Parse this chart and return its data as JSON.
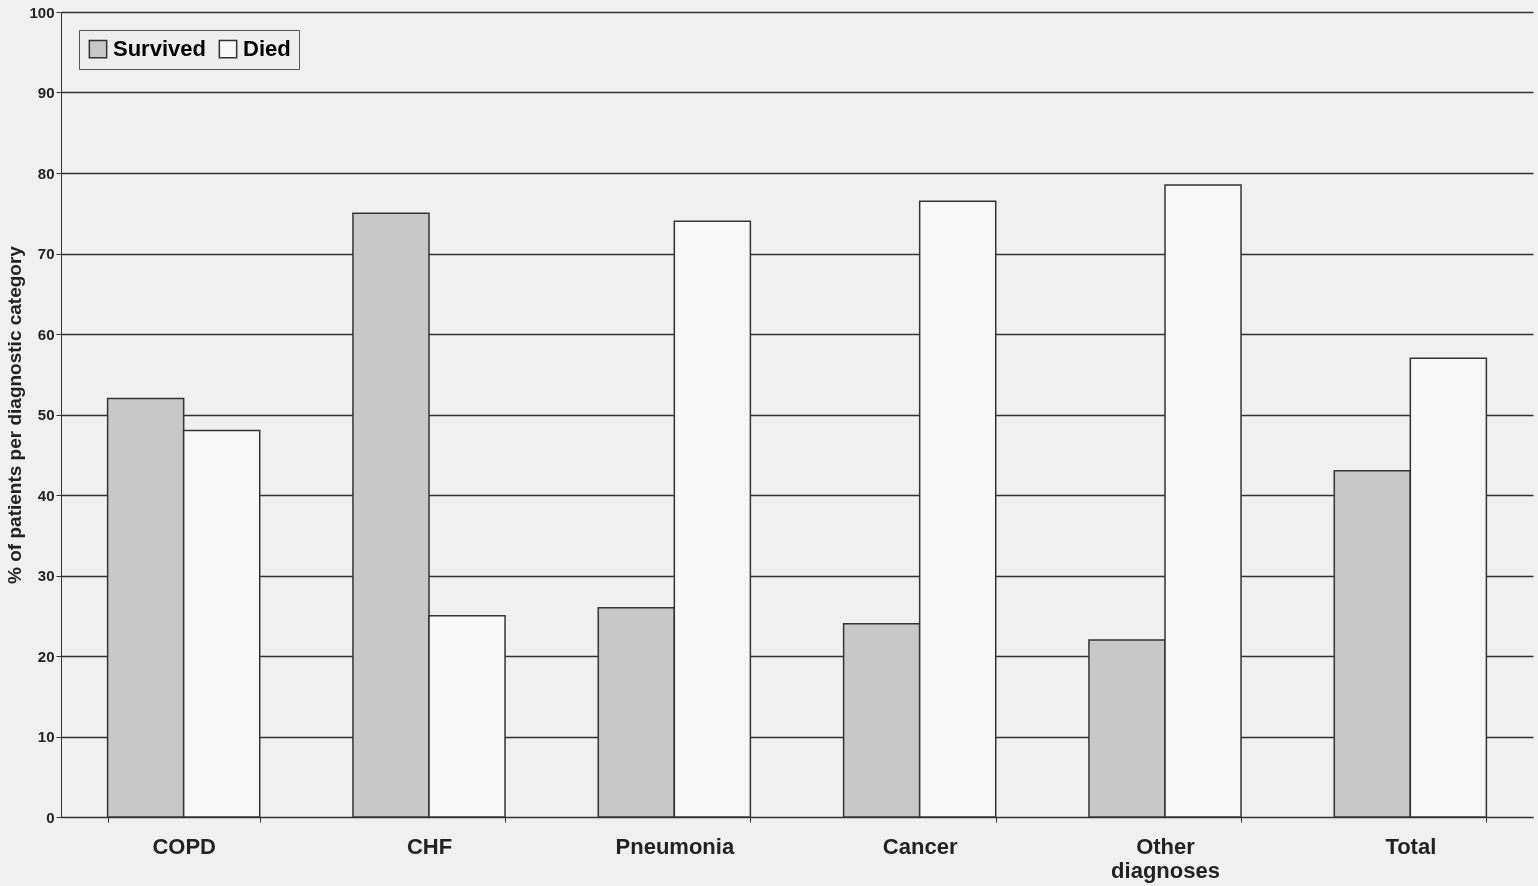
{
  "chart_data": {
    "type": "bar",
    "ylabel": "% of patients per diagnostic category",
    "categories": [
      "COPD",
      "CHF",
      "Pneumonia",
      "Cancer",
      "Other diagnoses",
      "Total"
    ],
    "series": [
      {
        "name": "Survived",
        "color": "#c8c8c8",
        "values": [
          52,
          75,
          26,
          24,
          22,
          43
        ]
      },
      {
        "name": "Died",
        "color": "#f8f8f8",
        "values": [
          48,
          25,
          74,
          76.5,
          78.5,
          57
        ]
      }
    ],
    "ylim": [
      0,
      100
    ],
    "yticks": [
      0,
      10,
      20,
      30,
      40,
      50,
      60,
      70,
      80,
      90,
      100
    ],
    "grid": "y",
    "legend": "top left"
  }
}
